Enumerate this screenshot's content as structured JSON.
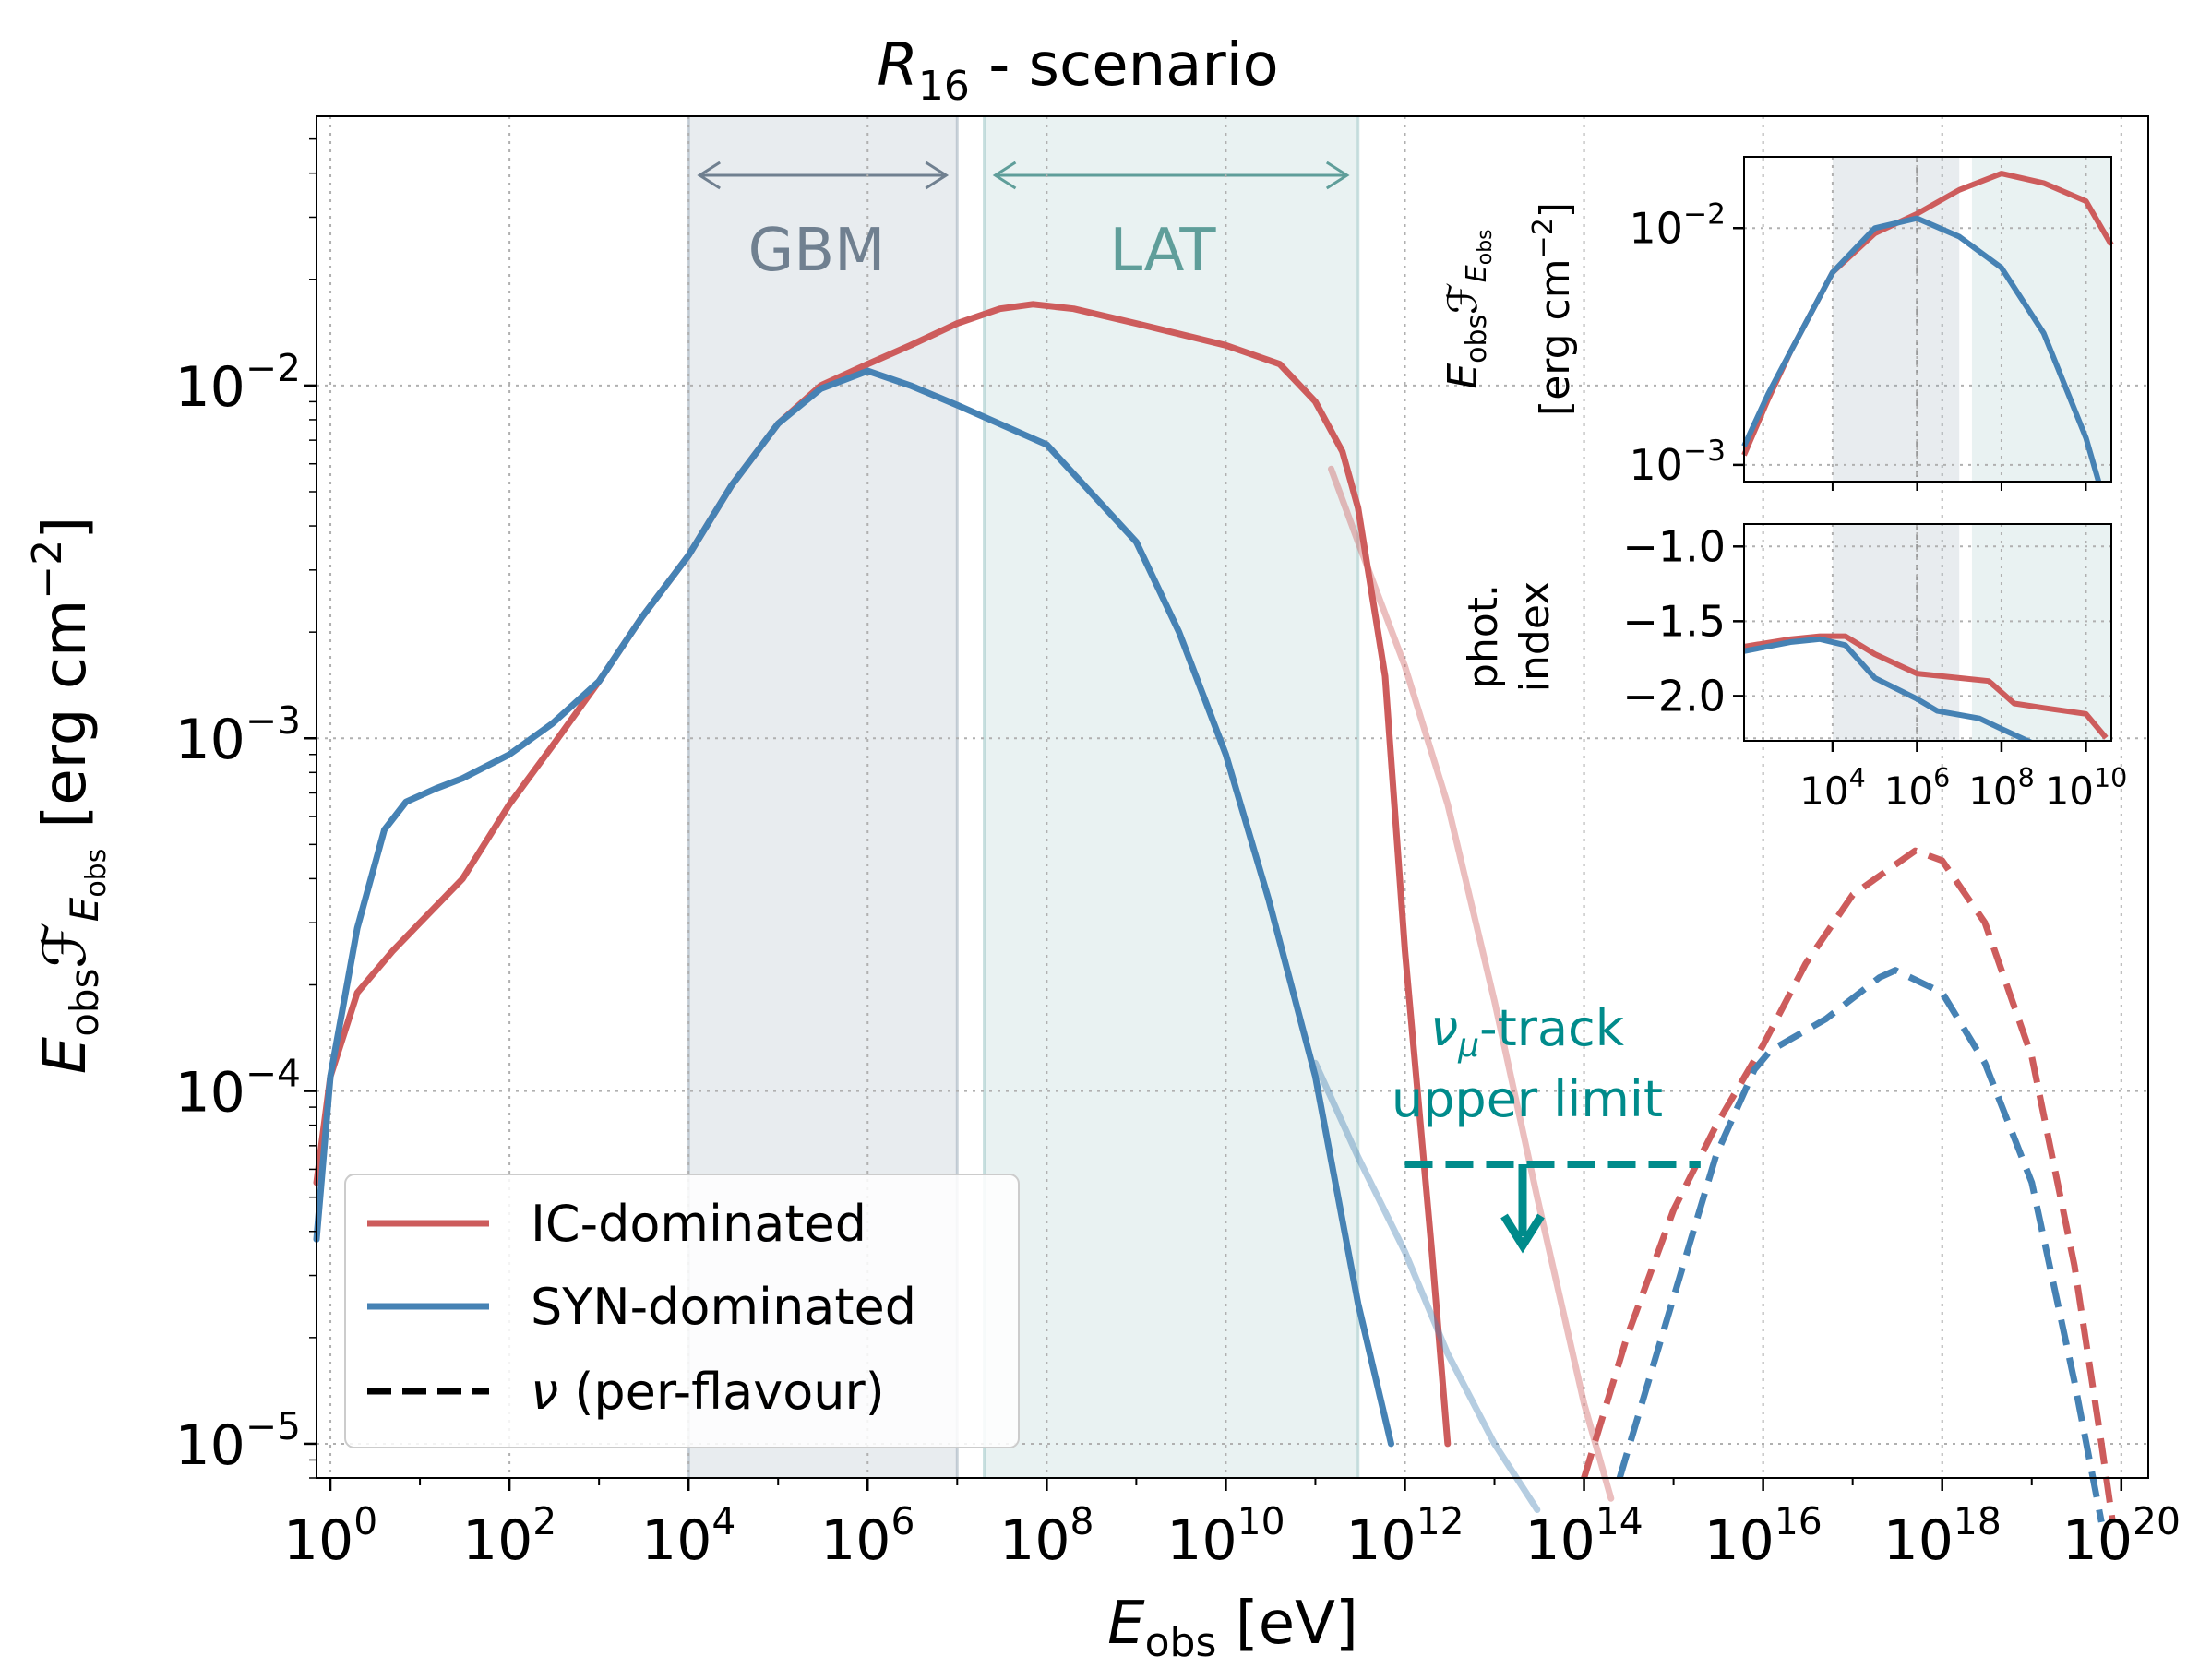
{
  "chart_data": [
    {
      "type": "line",
      "title": "R16 - scenario",
      "title_main": "R",
      "title_sub": "16",
      "title_rest": " - scenario",
      "xlabel": "E_obs [eV]",
      "xlabel_main": "E",
      "xlabel_sub": "obs",
      "xlabel_rest": " [eV]",
      "ylabel": "E_obs F_E_obs [erg cm^-2]",
      "ylabel_main": "E",
      "ylabel_sub": "obs",
      "ylabel_F": "ℱ",
      "ylabel_E2": "E",
      "ylabel_sub2": "obs",
      "ylabel_unit": "[erg cm",
      "ylabel_unit_sup": "−2",
      "ylabel_unit_end": "]",
      "x_scale": "log",
      "y_scale": "log",
      "xlim": [
        0.7,
        2e+20
      ],
      "ylim": [
        8e-06,
        0.058
      ],
      "x_tick_labels": [
        {
          "base": "10",
          "exp": "0",
          "value": 1
        },
        {
          "base": "10",
          "exp": "2",
          "value": 100.0
        },
        {
          "base": "10",
          "exp": "4",
          "value": 10000.0
        },
        {
          "base": "10",
          "exp": "6",
          "value": 1000000.0
        },
        {
          "base": "10",
          "exp": "8",
          "value": 100000000.0
        },
        {
          "base": "10",
          "exp": "10",
          "value": 10000000000.0
        },
        {
          "base": "10",
          "exp": "12",
          "value": 1000000000000.0
        },
        {
          "base": "10",
          "exp": "14",
          "value": 100000000000000.0
        },
        {
          "base": "10",
          "exp": "16",
          "value": 1e+16
        },
        {
          "base": "10",
          "exp": "18",
          "value": 1e+18
        },
        {
          "base": "10",
          "exp": "20",
          "value": 1e+20
        }
      ],
      "y_tick_labels": [
        {
          "base": "10",
          "exp": "−5",
          "value": 1e-05
        },
        {
          "base": "10",
          "exp": "−4",
          "value": 0.0001
        },
        {
          "base": "10",
          "exp": "−3",
          "value": 0.001
        },
        {
          "base": "10",
          "exp": "−2",
          "value": 0.01
        }
      ],
      "grid": true,
      "legend_position": "lower-left",
      "legend": [
        {
          "label": "IC-dominated",
          "color": "#cd5c5c",
          "style": "solid"
        },
        {
          "label": "SYN-dominated",
          "color": "#4682b4",
          "style": "solid"
        },
        {
          "label_symbol": "ν",
          "label_rest": " (per-flavour)",
          "color": "#000000",
          "style": "dashed"
        }
      ],
      "bands": [
        {
          "label": "GBM",
          "x_range": [
            10000.0,
            10000000.0
          ],
          "color": "#8e9faf"
        },
        {
          "label": "LAT",
          "x_range": [
            20000000.0,
            300000000000.0
          ],
          "color": "#8fbcbc"
        }
      ],
      "annotations": {
        "upper_limit_line1_symbol": "ν",
        "upper_limit_line1_sub": "μ",
        "upper_limit_line1_rest": "-track",
        "upper_limit_line2": "upper limit",
        "upper_limit_value": 6.2e-05,
        "upper_limit_x_range": [
          1000000000000.0,
          2000000000000000.0
        ],
        "upper_limit_color": "#008b8b"
      },
      "series": [
        {
          "name": "IC-dominated",
          "color": "#cd5c5c",
          "style": "solid",
          "points": [
            [
              0.7,
              5.5e-05
            ],
            [
              1,
              0.00011
            ],
            [
              2,
              0.00019
            ],
            [
              5,
              0.00025
            ],
            [
              10,
              0.0003
            ],
            [
              30,
              0.0004
            ],
            [
              100,
              0.00065
            ],
            [
              300,
              0.00095
            ],
            [
              1000,
              0.00145
            ],
            [
              3000,
              0.0022
            ],
            [
              10000.0,
              0.0033
            ],
            [
              30000.0,
              0.0052
            ],
            [
              100000.0,
              0.0078
            ],
            [
              300000.0,
              0.01
            ],
            [
              1000000.0,
              0.0115
            ],
            [
              3000000.0,
              0.013
            ],
            [
              10000000.0,
              0.015
            ],
            [
              30000000.0,
              0.0165
            ],
            [
              70000000.0,
              0.017
            ],
            [
              200000000.0,
              0.0165
            ],
            [
              1000000000.0,
              0.015
            ],
            [
              10000000000.0,
              0.013
            ],
            [
              40000000000.0,
              0.0115
            ],
            [
              100000000000.0,
              0.009
            ],
            [
              200000000000.0,
              0.0065
            ],
            [
              300000000000.0,
              0.0045
            ],
            [
              600000000000.0,
              0.0015
            ],
            [
              1000000000000.0,
              0.00025
            ],
            [
              2000000000000.0,
              3.5e-05
            ],
            [
              3000000000000.0,
              1e-05
            ]
          ]
        },
        {
          "name": "SYN-dominated",
          "color": "#4682b4",
          "style": "solid",
          "points": [
            [
              0.7,
              3.8e-05
            ],
            [
              1,
              0.00011
            ],
            [
              2,
              0.00029
            ],
            [
              4,
              0.00055
            ],
            [
              7,
              0.00066
            ],
            [
              15,
              0.00072
            ],
            [
              30,
              0.00077
            ],
            [
              100,
              0.0009
            ],
            [
              300,
              0.0011
            ],
            [
              1000,
              0.00145
            ],
            [
              3000,
              0.0022
            ],
            [
              10000.0,
              0.0033
            ],
            [
              30000.0,
              0.0052
            ],
            [
              100000.0,
              0.0078
            ],
            [
              300000.0,
              0.0098
            ],
            [
              1000000.0,
              0.011
            ],
            [
              3000000.0,
              0.01
            ],
            [
              10000000.0,
              0.0088
            ],
            [
              100000000.0,
              0.0068
            ],
            [
              1000000000.0,
              0.0036
            ],
            [
              3000000000.0,
              0.002
            ],
            [
              10000000000.0,
              0.0009
            ],
            [
              30000000000.0,
              0.00035
            ],
            [
              100000000000.0,
              0.00011
            ],
            [
              300000000000.0,
              2.5e-05
            ],
            [
              700000000000.0,
              1e-05
            ]
          ]
        },
        {
          "name": "IC-dominated (faded)",
          "color": "#cd5c5c",
          "style": "solid",
          "opacity": 0.4,
          "points": [
            [
              150000000000.0,
              0.0058
            ],
            [
              300000000000.0,
              0.0036
            ],
            [
              1000000000000.0,
              0.0016
            ],
            [
              3000000000000.0,
              0.00065
            ],
            [
              10000000000000.0,
              0.00018
            ],
            [
              30000000000000.0,
              5e-05
            ],
            [
              100000000000000.0,
              1.3e-05
            ],
            [
              200000000000000.0,
              7e-06
            ]
          ]
        },
        {
          "name": "SYN-dominated (faded)",
          "color": "#4682b4",
          "style": "solid",
          "opacity": 0.4,
          "points": [
            [
              100000000000.0,
              0.00012
            ],
            [
              300000000000.0,
              6.5e-05
            ],
            [
              1000000000000.0,
              3.5e-05
            ],
            [
              3000000000000.0,
              1.8e-05
            ],
            [
              10000000000000.0,
              1e-05
            ],
            [
              30000000000000.0,
              6.5e-06
            ]
          ]
        },
        {
          "name": "IC ν",
          "color": "#cd5c5c",
          "style": "dashed",
          "points": [
            [
              100000000000000.0,
              8e-06
            ],
            [
              300000000000000.0,
              2e-05
            ],
            [
              1000000000000000.0,
              4.6e-05
            ],
            [
              3000000000000000.0,
              8e-05
            ],
            [
              1e+16,
              0.000135
            ],
            [
              3e+16,
              0.00023
            ],
            [
              1e+17,
              0.00036
            ],
            [
              5e+17,
              0.00048
            ],
            [
              1e+18,
              0.00045
            ],
            [
              3e+18,
              0.0003
            ],
            [
              1e+19,
              0.000125
            ],
            [
              3e+19,
              3.2e-05
            ],
            [
              6e+19,
              1e-05
            ],
            [
              8e+19,
              6e-06
            ]
          ]
        },
        {
          "name": "SYN ν",
          "color": "#4682b4",
          "style": "dashed",
          "points": [
            [
              250000000000000.0,
              8e-06
            ],
            [
              1000000000000000.0,
              2.6e-05
            ],
            [
              3000000000000000.0,
              6.6e-05
            ],
            [
              8000000000000000.0,
              0.000115
            ],
            [
              1.2e+16,
              0.00013
            ],
            [
              5e+16,
              0.00016
            ],
            [
              2e+17,
              0.00021
            ],
            [
              3e+17,
              0.00022
            ],
            [
              1e+18,
              0.00019
            ],
            [
              3e+18,
              0.00012
            ],
            [
              1e+19,
              5.5e-05
            ],
            [
              3e+19,
              1.5e-05
            ],
            [
              6e+19,
              6e-06
            ]
          ]
        }
      ]
    },
    {
      "type": "line",
      "inset": "top",
      "ylabel_main": "E",
      "ylabel_sub": "obs",
      "ylabel_F": "ℱ",
      "ylabel_E2": "E",
      "ylabel_sub2": "obs",
      "ylabel_unit": "[erg cm",
      "ylabel_unit_sup": "−2",
      "ylabel_unit_end": "]",
      "x_scale": "log",
      "y_scale": "log",
      "xlim": [
        80,
        40000000000.0
      ],
      "ylim": [
        0.00085,
        0.02
      ],
      "y_tick_labels": [
        {
          "base": "10",
          "exp": "−3",
          "value": 0.001
        },
        {
          "base": "10",
          "exp": "−2",
          "value": 0.01
        }
      ],
      "series": [
        {
          "name": "IC-dominated",
          "color": "#cd5c5c",
          "points": [
            [
              80,
              0.0011
            ],
            [
              300,
              0.0019
            ],
            [
              1000,
              0.003
            ],
            [
              10000.0,
              0.0065
            ],
            [
              100000.0,
              0.0095
            ],
            [
              1000000.0,
              0.0115
            ],
            [
              10000000.0,
              0.0145
            ],
            [
              100000000.0,
              0.017
            ],
            [
              1000000000.0,
              0.0155
            ],
            [
              10000000000.0,
              0.013
            ],
            [
              40000000000.0,
              0.0085
            ]
          ]
        },
        {
          "name": "SYN-dominated",
          "color": "#4682b4",
          "points": [
            [
              80,
              0.0012
            ],
            [
              300,
              0.002
            ],
            [
              1000,
              0.003
            ],
            [
              10000.0,
              0.0065
            ],
            [
              100000.0,
              0.01
            ],
            [
              1000000.0,
              0.011
            ],
            [
              10000000.0,
              0.0092
            ],
            [
              100000000.0,
              0.0068
            ],
            [
              1000000000.0,
              0.0036
            ],
            [
              10000000000.0,
              0.0013
            ],
            [
              20000000000.0,
              0.00085
            ]
          ]
        }
      ]
    },
    {
      "type": "line",
      "inset": "bottom",
      "ylabel_line1": "phot.",
      "ylabel_line2": "index",
      "x_scale": "log",
      "xlim": [
        80,
        40000000000.0
      ],
      "ylim": [
        -2.3,
        -0.85
      ],
      "x_tick_labels": [
        {
          "base": "10",
          "exp": "4",
          "value": 10000.0
        },
        {
          "base": "10",
          "exp": "6",
          "value": 1000000.0
        },
        {
          "base": "10",
          "exp": "8",
          "value": 100000000.0
        },
        {
          "base": "10",
          "exp": "10",
          "value": 10000000000.0
        }
      ],
      "y_tick_labels": [
        {
          "label": "−1.0",
          "value": -1.0
        },
        {
          "label": "−1.5",
          "value": -1.5
        },
        {
          "label": "−2.0",
          "value": -2.0
        }
      ],
      "series": [
        {
          "name": "IC-dominated",
          "color": "#cd5c5c",
          "points": [
            [
              80,
              -1.67
            ],
            [
              1000,
              -1.62
            ],
            [
              5000,
              -1.6
            ],
            [
              20000.0,
              -1.6
            ],
            [
              100000.0,
              -1.72
            ],
            [
              1000000.0,
              -1.85
            ],
            [
              10000000.0,
              -1.88
            ],
            [
              50000000.0,
              -1.9
            ],
            [
              200000000.0,
              -2.05
            ],
            [
              1000000000.0,
              -2.08
            ],
            [
              10000000000.0,
              -2.12
            ],
            [
              30000000000.0,
              -2.28
            ]
          ]
        },
        {
          "name": "SYN-dominated",
          "color": "#4682b4",
          "points": [
            [
              80,
              -1.7
            ],
            [
              1000,
              -1.64
            ],
            [
              5000,
              -1.62
            ],
            [
              20000.0,
              -1.66
            ],
            [
              100000.0,
              -1.88
            ],
            [
              1000000.0,
              -2.02
            ],
            [
              3000000.0,
              -2.1
            ],
            [
              30000000.0,
              -2.15
            ],
            [
              100000000.0,
              -2.22
            ],
            [
              1000000000.0,
              -2.35
            ]
          ]
        }
      ]
    }
  ]
}
